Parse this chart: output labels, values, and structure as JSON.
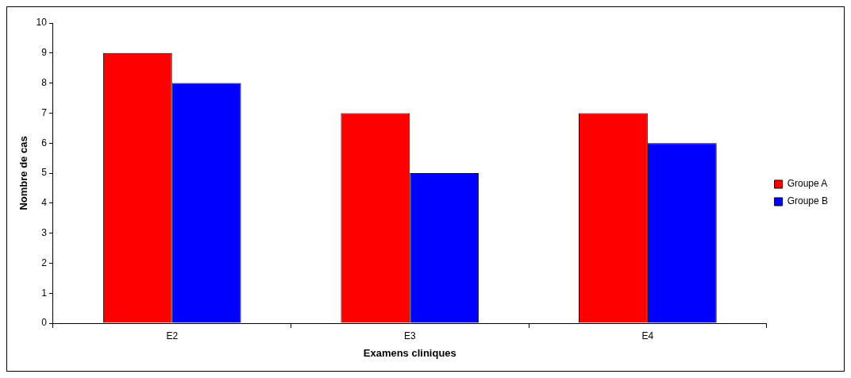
{
  "chart_data": {
    "type": "bar",
    "xlabel": "Examens cliniques",
    "ylabel": "Nombre de cas",
    "categories": [
      "E2",
      "E3",
      "E4"
    ],
    "series": [
      {
        "name": "Groupe A",
        "color": "#ff0000",
        "values": [
          9,
          7,
          7
        ]
      },
      {
        "name": "Groupe B",
        "color": "#0000ff",
        "values": [
          8,
          5,
          6
        ]
      }
    ],
    "ylim": [
      0,
      10
    ],
    "yticks": [
      0,
      1,
      2,
      3,
      4,
      5,
      6,
      7,
      8,
      9,
      10
    ],
    "grid": false,
    "legend": "right"
  }
}
